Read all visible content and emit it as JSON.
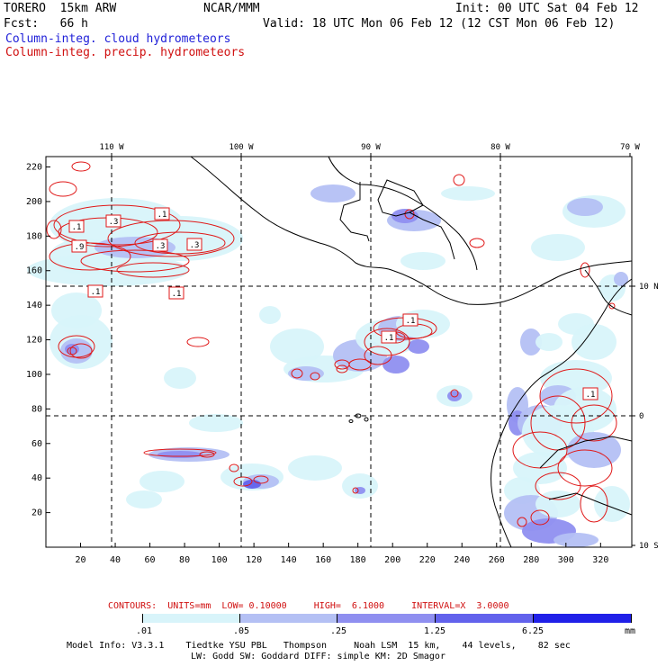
{
  "header": {
    "model": "TORERO  15km ARW",
    "org": "NCAR/MMM",
    "init": "Init: 00 UTC Sat 04 Feb 12",
    "fcst": "Fcst:   66 h",
    "valid": "Valid: 18 UTC Mon 06 Feb 12 (12 CST Mon 06 Feb 12)",
    "field_cloud": "Column-integ. cloud hydrometeors",
    "field_precip": "Column-integ. precip. hydrometeors"
  },
  "colors": {
    "cloud_text": "#1f1fd8",
    "precip_text": "#d01010",
    "shade_1": "#d8f4fa",
    "shade_2": "#b4c0f4",
    "shade_3": "#8f8ff0",
    "shade_4": "#6262ec",
    "shade_5": "#2020e8",
    "contour": "#e01818"
  },
  "axes": {
    "top_lon": [
      "110 W",
      "100 W",
      "90 W",
      "80 W",
      "70 W"
    ],
    "right_lat": [
      "10 N",
      "0",
      "10 S"
    ],
    "y_ticks": [
      "20",
      "40",
      "60",
      "80",
      "100",
      "120",
      "140",
      "160",
      "180",
      "200",
      "220"
    ],
    "x_ticks": [
      "20",
      "40",
      "60",
      "80",
      "100",
      "120",
      "140",
      "160",
      "180",
      "200",
      "220",
      "240",
      "260",
      "280",
      "300",
      "320"
    ]
  },
  "map_labels": [
    ".1",
    ".3",
    ".1",
    ".9",
    ".3",
    ".3",
    ".1",
    ".1",
    ".1",
    ".1",
    ".1"
  ],
  "contour_info": "CONTOURS:  UNITS=mm  LOW= 0.10000     HIGH=  6.1000     INTERVAL=X  3.0000",
  "colorbar": {
    "ticks": [
      ".01",
      ".05",
      ".25",
      "1.25",
      "6.25"
    ],
    "unit": "mm"
  },
  "footer": {
    "line1": "Model Info: V3.3.1    Tiedtke YSU PBL   Thompson     Noah LSM  15 km,    44 levels,    82 sec",
    "line2": "LW: Godd SW: Goddard DIFF: simple KM: 2D Smagor"
  }
}
